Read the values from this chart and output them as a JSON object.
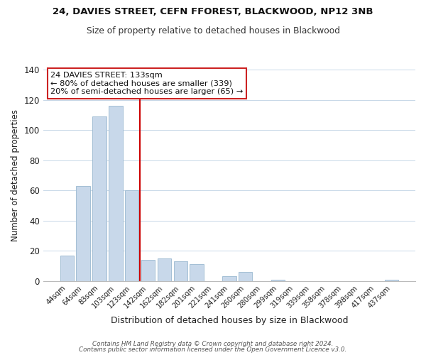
{
  "title_line1": "24, DAVIES STREET, CEFN FFOREST, BLACKWOOD, NP12 3NB",
  "title_line2": "Size of property relative to detached houses in Blackwood",
  "xlabel": "Distribution of detached houses by size in Blackwood",
  "ylabel": "Number of detached properties",
  "bar_labels": [
    "44sqm",
    "64sqm",
    "83sqm",
    "103sqm",
    "123sqm",
    "142sqm",
    "162sqm",
    "182sqm",
    "201sqm",
    "221sqm",
    "241sqm",
    "260sqm",
    "280sqm",
    "299sqm",
    "319sqm",
    "339sqm",
    "358sqm",
    "378sqm",
    "398sqm",
    "417sqm",
    "437sqm"
  ],
  "bar_values": [
    17,
    63,
    109,
    116,
    60,
    14,
    15,
    13,
    11,
    0,
    3,
    6,
    0,
    1,
    0,
    0,
    0,
    0,
    0,
    0,
    1
  ],
  "bar_color": "#c8d8ea",
  "bar_edge_color": "#9ab8d0",
  "vline_x": 5,
  "vline_color": "#cc0000",
  "ylim": [
    0,
    140
  ],
  "yticks": [
    0,
    20,
    40,
    60,
    80,
    100,
    120,
    140
  ],
  "annotation_box_text": "24 DAVIES STREET: 133sqm\n← 80% of detached houses are smaller (339)\n20% of semi-detached houses are larger (65) →",
  "footer_line1": "Contains HM Land Registry data © Crown copyright and database right 2024.",
  "footer_line2": "Contains public sector information licensed under the Open Government Licence v3.0.",
  "background_color": "#ffffff",
  "grid_color": "#c8d8e8"
}
